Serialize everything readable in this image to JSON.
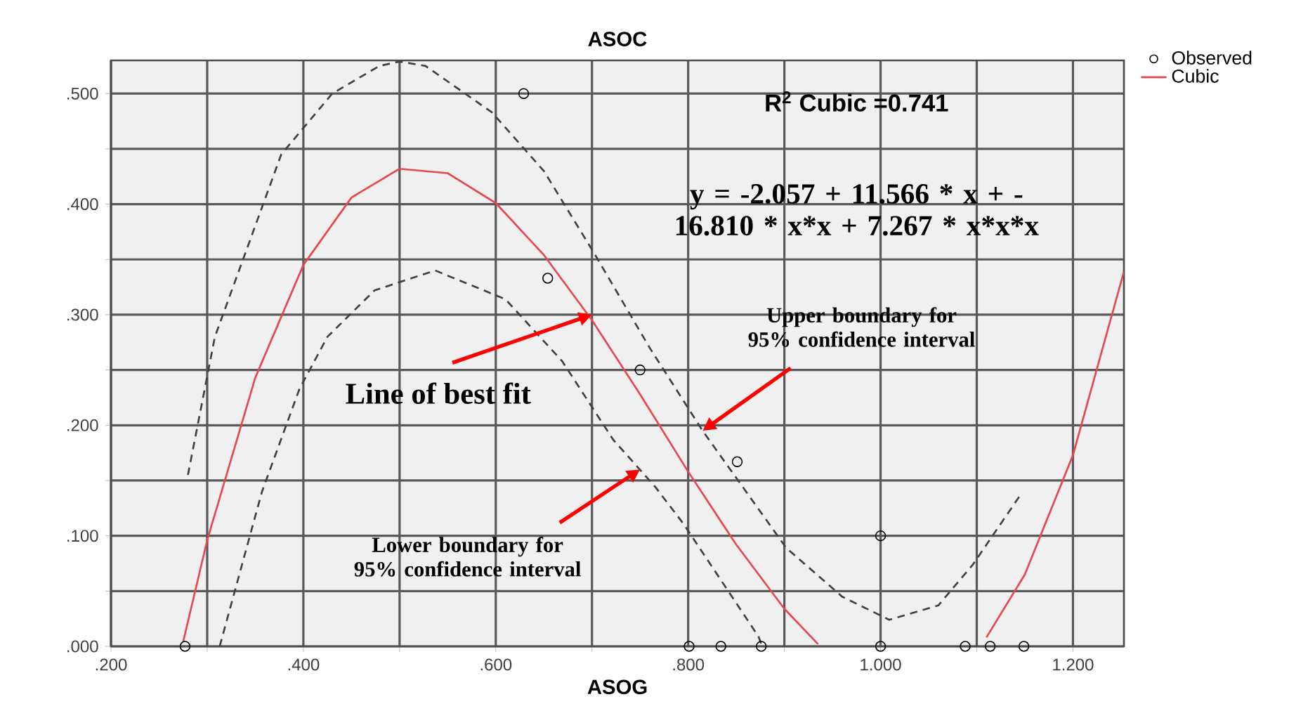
{
  "chart_data": {
    "type": "scatter",
    "title": "ASOC",
    "xlabel": "ASOG",
    "xlim": [
      0.2,
      1.253
    ],
    "ylim": [
      0,
      0.53
    ],
    "xticks": [
      {
        "value": 0.2,
        "label": ".200"
      },
      {
        "value": 0.3,
        "label": null
      },
      {
        "value": 0.4,
        "label": ".400"
      },
      {
        "value": 0.5,
        "label": null
      },
      {
        "value": 0.6,
        "label": ".600"
      },
      {
        "value": 0.7,
        "label": null
      },
      {
        "value": 0.8,
        "label": ".800"
      },
      {
        "value": 0.9,
        "label": null
      },
      {
        "value": 1.0,
        "label": "1.000"
      },
      {
        "value": 1.1,
        "label": null
      },
      {
        "value": 1.2,
        "label": "1.200"
      }
    ],
    "yticks": [
      {
        "value": 0,
        "label": ".000"
      },
      {
        "value": 0.05,
        "label": null
      },
      {
        "value": 0.1,
        "label": ".100"
      },
      {
        "value": 0.15,
        "label": null
      },
      {
        "value": 0.2,
        "label": ".200"
      },
      {
        "value": 0.25,
        "label": null
      },
      {
        "value": 0.3,
        "label": ".300"
      },
      {
        "value": 0.35,
        "label": null
      },
      {
        "value": 0.4,
        "label": ".400"
      },
      {
        "value": 0.45,
        "label": null
      },
      {
        "value": 0.5,
        "label": ".500"
      }
    ],
    "grid": true,
    "legend": "top right",
    "series": [
      {
        "name": "Observed",
        "type": "scatter",
        "marker": "circle",
        "color": "#000000",
        "x": [
          0.277,
          0.629,
          0.654,
          0.75,
          0.851,
          1.0,
          0.801,
          0.834,
          0.876,
          1.0,
          1.088,
          1.114,
          1.149
        ],
        "values": [
          0,
          0.5,
          0.333,
          0.25,
          0.167,
          0.1,
          0,
          0,
          0,
          0,
          0,
          0,
          0
        ]
      },
      {
        "name": "Cubic",
        "type": "line",
        "color": "#e8474c",
        "line_style": "solid",
        "x": [
          0.275,
          0.3,
          0.35,
          0.4,
          0.45,
          0.5,
          0.55,
          0.6,
          0.65,
          0.7,
          0.75,
          0.8,
          0.85,
          0.9,
          0.935,
          1.0,
          1.11,
          1.15,
          1.2,
          1.253
        ],
        "values": [
          0.004,
          0.096,
          0.243,
          0.345,
          0.406,
          0.432,
          0.428,
          0.401,
          0.354,
          0.295,
          0.228,
          0.158,
          0.092,
          0.034,
          0.002,
          null,
          0.008,
          0.065,
          0.173,
          0.339
        ]
      },
      {
        "type": "line",
        "color": "#404040",
        "line_style": "dashed",
        "x": [
          0.28,
          0.308,
          0.377,
          0.43,
          0.479,
          0.5,
          0.527,
          0.596,
          0.65,
          0.702,
          0.76,
          0.815,
          0.902,
          0.96,
          1.009,
          1.06,
          1.096,
          1.147
        ],
        "values": [
          0.155,
          0.28,
          0.445,
          0.5,
          0.525,
          0.529,
          0.525,
          0.483,
          0.43,
          0.356,
          0.27,
          0.195,
          0.089,
          0.045,
          0.024,
          0.037,
          0.074,
          0.139
        ]
      },
      {
        "type": "line",
        "color": "#404040",
        "line_style": "dashed",
        "x": [
          0.313,
          0.357,
          0.396,
          0.425,
          0.474,
          0.537,
          0.61,
          0.669,
          0.722,
          0.766,
          0.795,
          0.873,
          0.877
        ],
        "values": [
          0,
          0.14,
          0.233,
          0.28,
          0.322,
          0.34,
          0.314,
          0.258,
          0.187,
          0.144,
          0.111,
          0.009,
          0
        ]
      }
    ],
    "annotations": [
      "R$^{2}$ Cubic =0.741",
      "y = -2.057 + 11.566 * x + -16.810 * x*x + 7.267 * x*x*x",
      {
        "text": "Line of best fit",
        "x": 0.7,
        "y": 0.3
      },
      {
        "text": "Upper boundary for 95% confidence interval",
        "x": 0.815,
        "y": 0.195
      },
      {
        "text": "Lower boundary for 95% confidence interval",
        "x": 0.75,
        "y": 0.16
      }
    ]
  }
}
